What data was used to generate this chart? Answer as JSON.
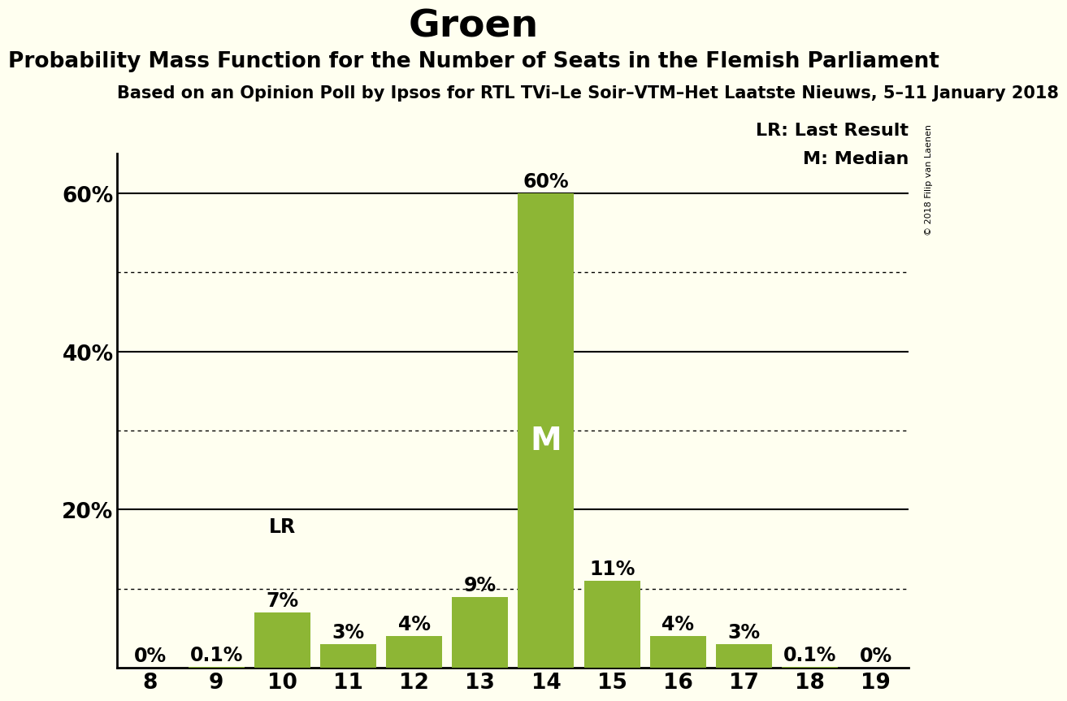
{
  "title": "Groen",
  "subtitle": "Probability Mass Function for the Number of Seats in the Flemish Parliament",
  "source_line": "Based on an Opinion Poll by Ipsos for RTL TVi–Le Soir–VTM–Het Laatste Nieuws, 5–11 January 2018",
  "copyright": "© 2018 Filip van Laenen",
  "seats": [
    8,
    9,
    10,
    11,
    12,
    13,
    14,
    15,
    16,
    17,
    18,
    19
  ],
  "probabilities": [
    0.0,
    0.1,
    7.0,
    3.0,
    4.0,
    9.0,
    60.0,
    11.0,
    4.0,
    3.0,
    0.1,
    0.0
  ],
  "bar_color": "#8db635",
  "median_seat": 14,
  "last_result_seat": 10,
  "legend_lr": "LR: Last Result",
  "legend_m": "M: Median",
  "background_color": "#fffff0",
  "ylim": [
    0,
    65
  ],
  "dotted_lines": [
    10,
    30,
    50
  ],
  "solid_lines": [
    20,
    40,
    60
  ],
  "label_fontsize": 17,
  "tick_fontsize": 19,
  "title_fontsize": 34,
  "subtitle_fontsize": 19,
  "source_fontsize": 15,
  "legend_fontsize": 16,
  "m_fontsize": 28,
  "copyright_fontsize": 8
}
